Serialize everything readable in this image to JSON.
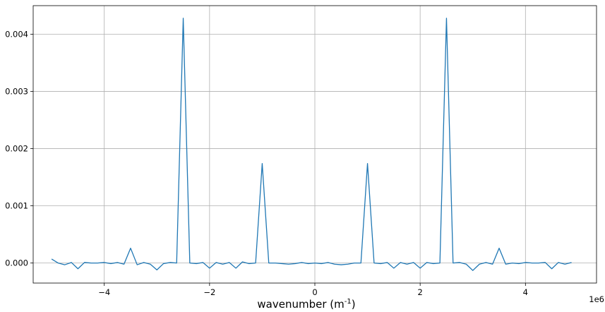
{
  "chart_data": {
    "type": "line",
    "title": "",
    "xlabel": "wavenumber (m",
    "xlabel_sup": "-1",
    "xlabel_close": ")",
    "ylabel": "",
    "x_offset_text": "1e6",
    "xlim": [
      -5.35,
      5.35
    ],
    "ylim": [
      -0.00035,
      0.0045
    ],
    "grid": true,
    "xticks": [
      -4,
      -2,
      0,
      2,
      4
    ],
    "xtick_labels": [
      "−4",
      "−2",
      "0",
      "2",
      "4"
    ],
    "yticks": [
      0.0,
      0.001,
      0.002,
      0.003,
      0.004
    ],
    "ytick_labels": [
      "0.000",
      "0.001",
      "0.002",
      "0.003",
      "0.004"
    ],
    "line_color": "#1f77b4",
    "series": [
      {
        "x": [
          -5.0,
          -4.875,
          -4.75,
          -4.625,
          -4.5,
          -4.375,
          -4.25,
          -4.125,
          -4.0,
          -3.875,
          -3.75,
          -3.625,
          -3.5,
          -3.375,
          -3.25,
          -3.125,
          -3.0,
          -2.875,
          -2.75,
          -2.625,
          -2.5,
          -2.375,
          -2.25,
          -2.125,
          -2.0,
          -1.875,
          -1.75,
          -1.625,
          -1.5,
          -1.375,
          -1.25,
          -1.125,
          -1.0,
          -0.875,
          -0.75,
          -0.625,
          -0.5,
          -0.375,
          -0.25,
          -0.125,
          0.0,
          0.125,
          0.25,
          0.375,
          0.5,
          0.625,
          0.75,
          0.875,
          1.0,
          1.125,
          1.25,
          1.375,
          1.5,
          1.625,
          1.75,
          1.875,
          2.0,
          2.125,
          2.25,
          2.375,
          2.5,
          2.625,
          2.75,
          2.875,
          3.0,
          3.125,
          3.25,
          3.375,
          3.5,
          3.625,
          3.75,
          3.875,
          4.0,
          4.125,
          4.25,
          4.375,
          4.5,
          4.625,
          4.75,
          4.875
        ],
        "y": [
          7e-05,
          0.0,
          -3e-05,
          1e-05,
          -0.0001,
          1e-05,
          0.0,
          0.0,
          1e-05,
          -1e-05,
          1e-05,
          -2e-05,
          0.00026,
          -3e-05,
          1e-05,
          -2e-05,
          -0.00012,
          -1e-05,
          1e-05,
          0.0,
          0.00428,
          0.0,
          -1e-05,
          1e-05,
          -9e-05,
          1e-05,
          -2e-05,
          1e-05,
          -9e-05,
          2e-05,
          -1e-05,
          0.0,
          0.00174,
          0.0,
          0.0,
          -1e-05,
          -2e-05,
          -1e-05,
          1e-05,
          -1e-05,
          0.0,
          -1e-05,
          1e-05,
          -2e-05,
          -3e-05,
          -2e-05,
          0.0,
          0.0,
          0.00174,
          0.0,
          -1e-05,
          1e-05,
          -9e-05,
          1e-05,
          -2e-05,
          1e-05,
          -9e-05,
          1e-05,
          -1e-05,
          0.0,
          0.00428,
          0.0,
          1e-05,
          -2e-05,
          -0.00013,
          -2e-05,
          1e-05,
          -2e-05,
          0.00026,
          -2e-05,
          0.0,
          -1e-05,
          1e-05,
          0.0,
          0.0,
          1e-05,
          -0.0001,
          1e-05,
          -2e-05,
          1e-05
        ]
      }
    ]
  }
}
